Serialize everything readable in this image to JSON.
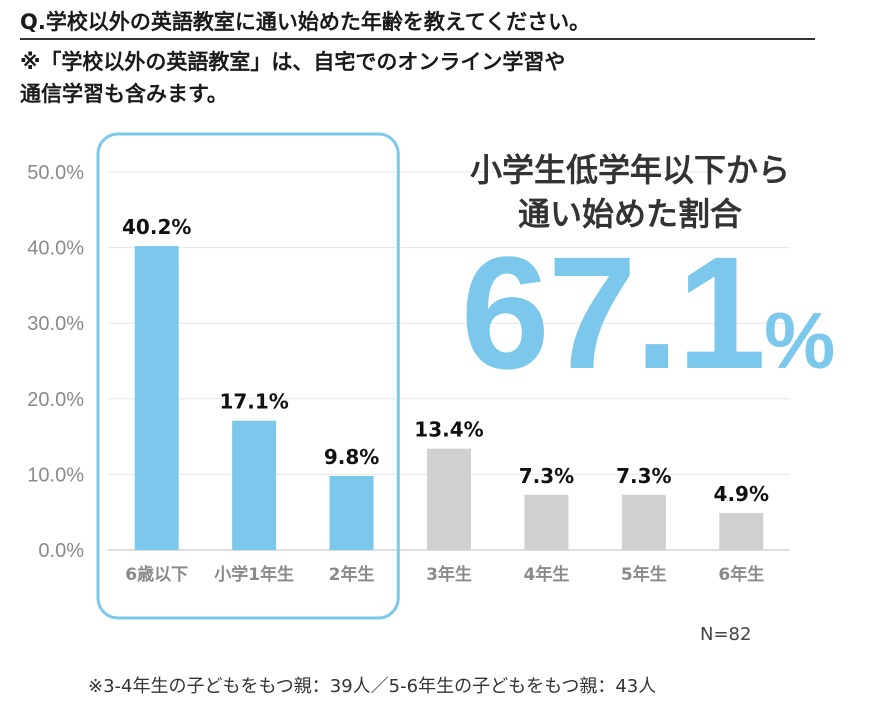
{
  "question": "Q.学校以外の英語教室に通い始めた年齢を教えてください。",
  "note": [
    "※「学校以外の英語教室」は、自宅でのオンライン学習や",
    "通信学習も含みます。"
  ],
  "callout": {
    "lines": [
      "小学生低学年以下から",
      "通い始めた割合"
    ],
    "value": "67.1",
    "unit": "%"
  },
  "n_label": "N=82",
  "footnote": "※3-4年生の子どもをもつ親：39人／5-6年生の子どもをもつ親：43人",
  "colors": {
    "highlight": "#7cc8ec",
    "other": "#d0d0d0",
    "frame": "#7cc8ec"
  },
  "chart_data": {
    "type": "bar",
    "categories": [
      "6歳以下",
      "小学1年生",
      "2年生",
      "3年生",
      "4年生",
      "5年生",
      "6年生"
    ],
    "values": [
      40.2,
      17.1,
      9.8,
      13.4,
      7.3,
      7.3,
      4.9
    ],
    "value_labels": [
      "40.2%",
      "17.1%",
      "9.8%",
      "13.4%",
      "7.3%",
      "7.3%",
      "4.9%"
    ],
    "highlighted": [
      true,
      true,
      true,
      false,
      false,
      false,
      false
    ],
    "yticks": [
      "0.0%",
      "10.0%",
      "20.0%",
      "30.0%",
      "40.0%",
      "50.0%"
    ],
    "ylim": [
      0,
      50
    ],
    "grid": true
  }
}
